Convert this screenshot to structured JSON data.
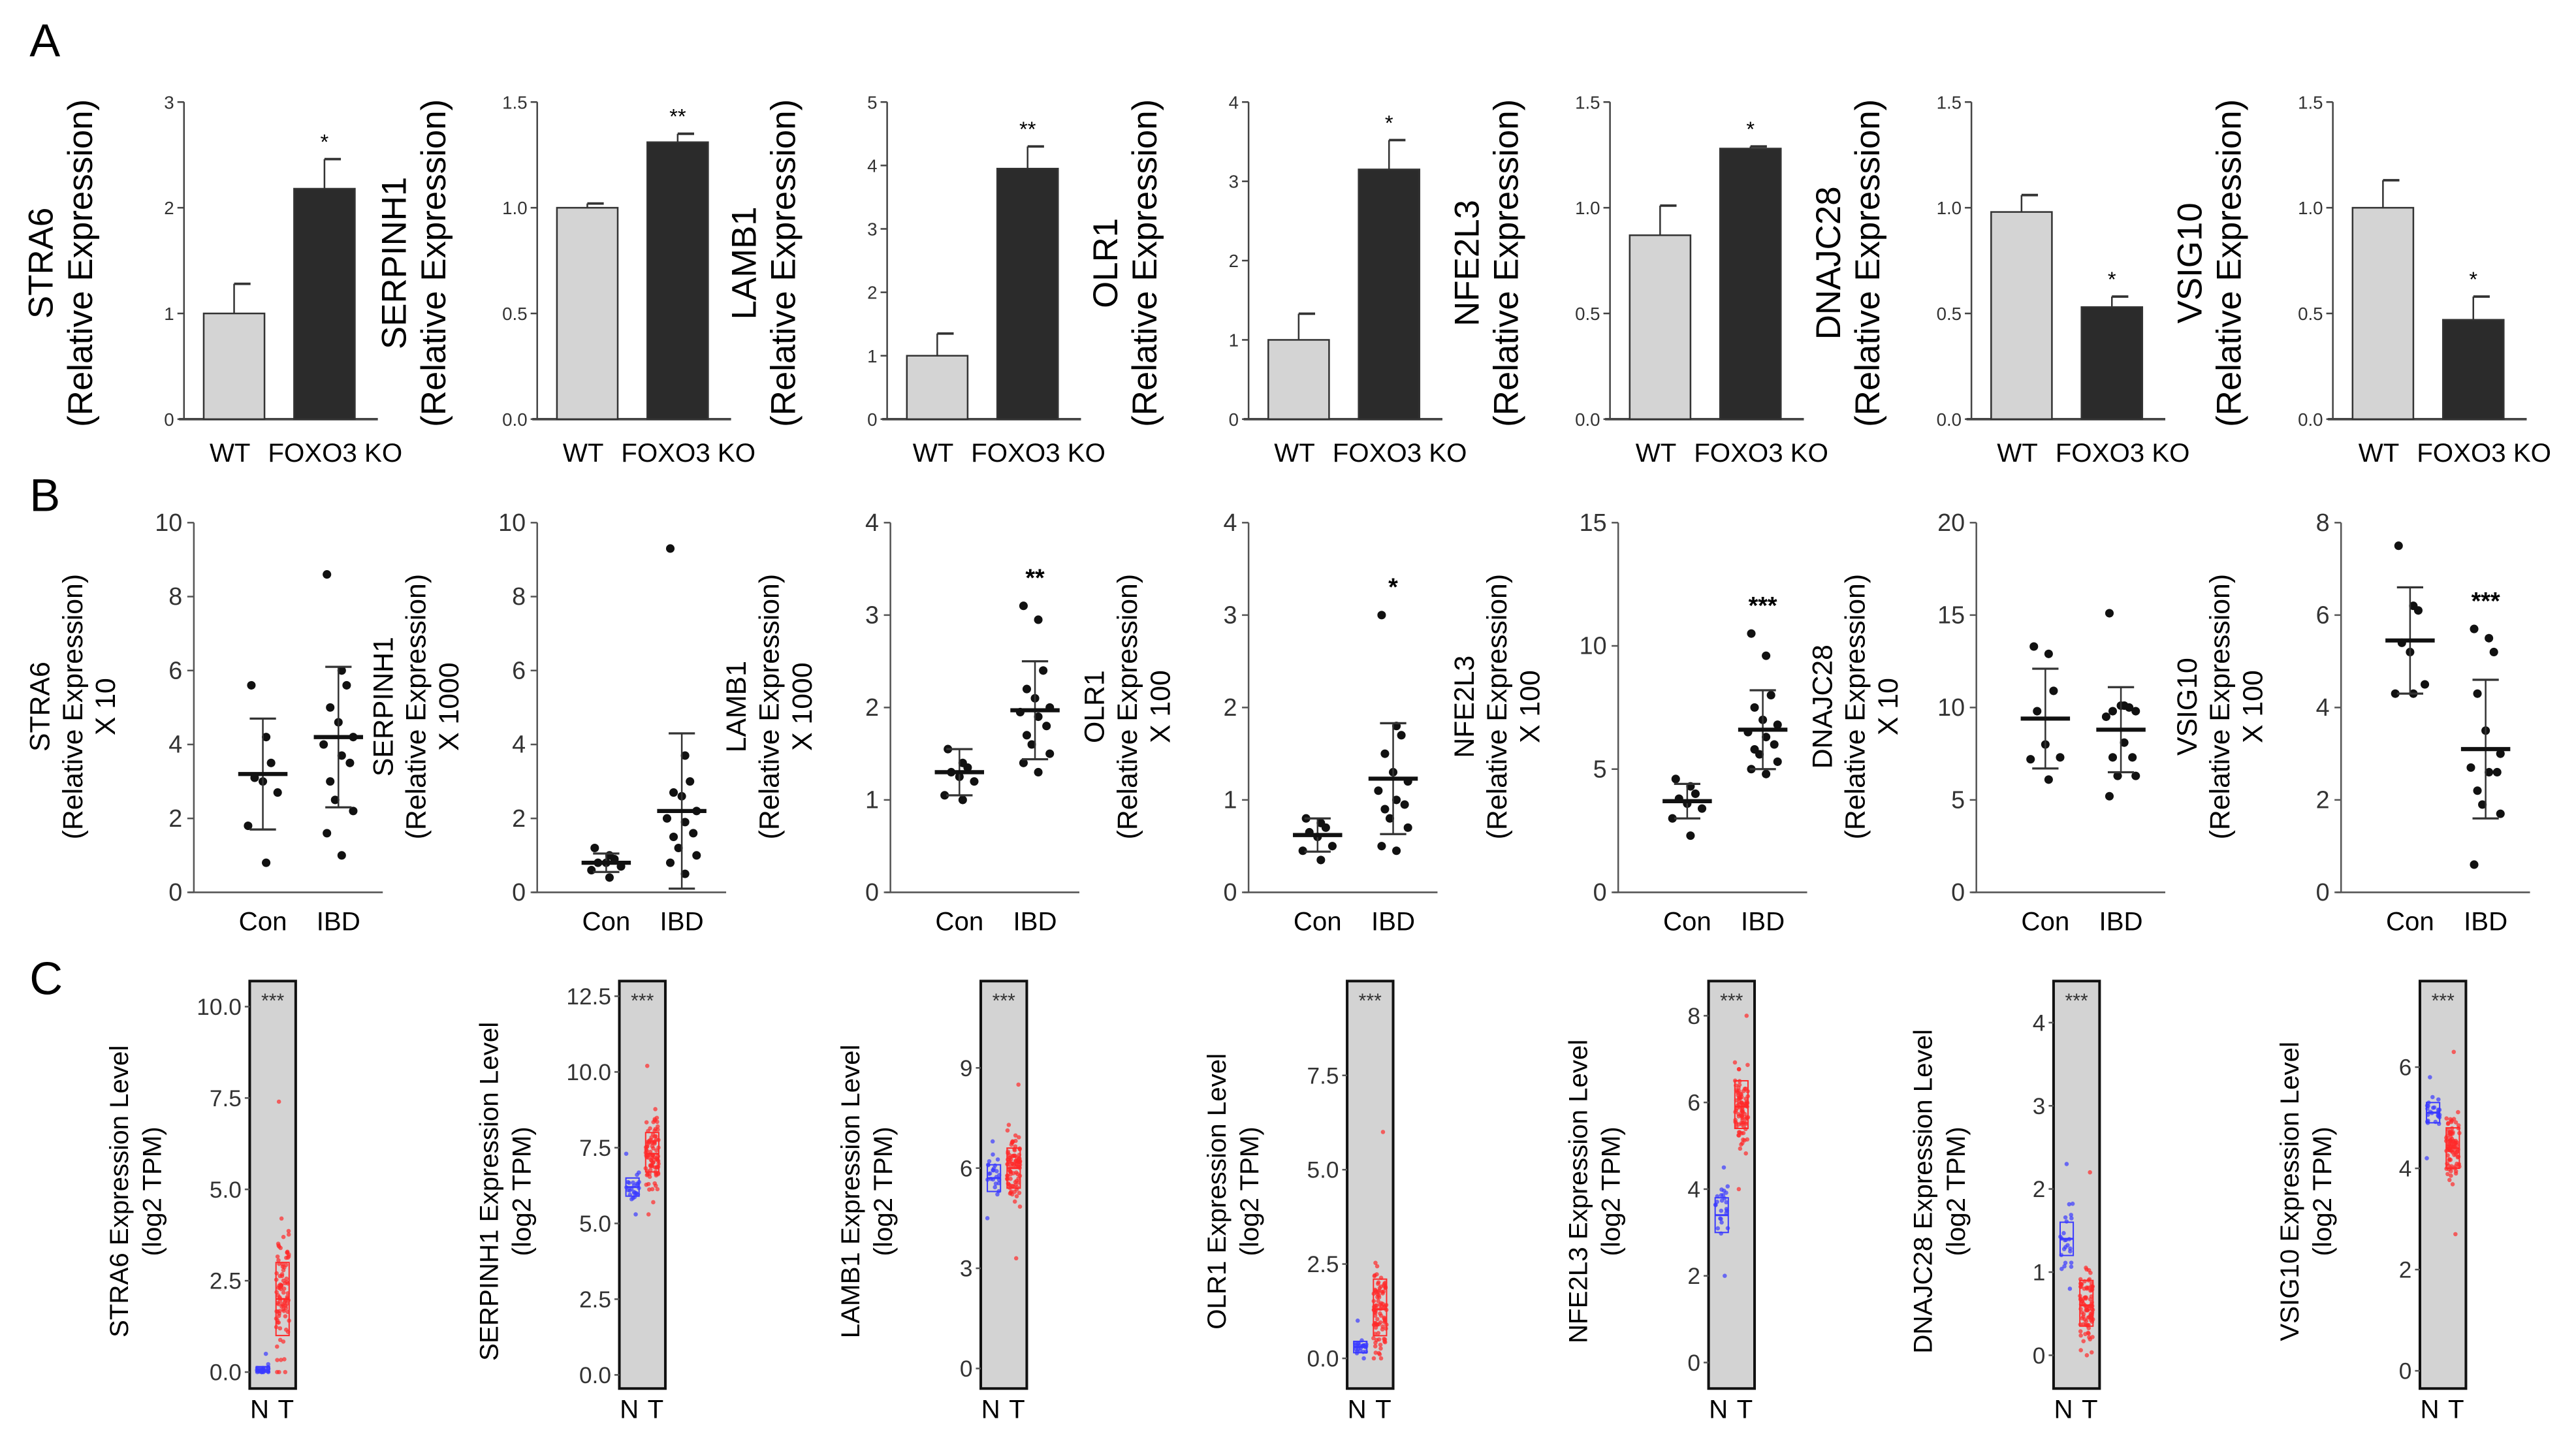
{
  "panel_labels": [
    "A",
    "B",
    "C"
  ],
  "colors": {
    "wt_bar": "#d4d4d4",
    "ko_bar": "#2b2b2b",
    "normal": "#3a3aff",
    "tumor": "#ff2a2a",
    "box_bg": "#d3d3d3"
  },
  "chart_data": [
    {
      "panel": "A",
      "type": "bar",
      "ylabel": [
        "STRA6",
        "(Relative Expression)"
      ],
      "categories": [
        "WT",
        "FOXO3 KO"
      ],
      "values": [
        1.0,
        2.18
      ],
      "errors": [
        0.28,
        0.28
      ],
      "significance": "*",
      "ylim": [
        0,
        3
      ],
      "yticks": [
        "0",
        "1",
        "2",
        "3"
      ]
    },
    {
      "panel": "A",
      "type": "bar",
      "ylabel": [
        "SERPINH1",
        "(Relative Expression)"
      ],
      "categories": [
        "WT",
        "FOXO3 KO"
      ],
      "values": [
        1.0,
        1.31
      ],
      "errors": [
        0.02,
        0.04
      ],
      "significance": "**",
      "ylim": [
        0,
        1.5
      ],
      "yticks": [
        "0.0",
        "0.5",
        "1.0",
        "1.5"
      ]
    },
    {
      "panel": "A",
      "type": "bar",
      "ylabel": [
        "LAMB1",
        "(Relative Expression)"
      ],
      "categories": [
        "WT",
        "FOXO3 KO"
      ],
      "values": [
        1.0,
        3.95
      ],
      "errors": [
        0.35,
        0.35
      ],
      "significance": "**",
      "ylim": [
        0,
        5
      ],
      "yticks": [
        "0",
        "1",
        "2",
        "3",
        "4",
        "5"
      ]
    },
    {
      "panel": "A",
      "type": "bar",
      "ylabel": [
        "OLR1",
        "(Relative Expression)"
      ],
      "categories": [
        "WT",
        "FOXO3 KO"
      ],
      "values": [
        1.0,
        3.15
      ],
      "errors": [
        0.33,
        0.37
      ],
      "significance": "*",
      "ylim": [
        0,
        4
      ],
      "yticks": [
        "0",
        "1",
        "2",
        "3",
        "4"
      ]
    },
    {
      "panel": "A",
      "type": "bar",
      "ylabel": [
        "NFE2L3",
        "(Relative Expression)"
      ],
      "categories": [
        "WT",
        "FOXO3 KO"
      ],
      "values": [
        0.87,
        1.28
      ],
      "errors": [
        0.14,
        0.01
      ],
      "significance": "*",
      "ylim": [
        0,
        1.5
      ],
      "yticks": [
        "0.0",
        "0.5",
        "1.0",
        "1.5"
      ]
    },
    {
      "panel": "A",
      "type": "bar",
      "ylabel": [
        "DNAJC28",
        "(Relative Expression)"
      ],
      "categories": [
        "WT",
        "FOXO3 KO"
      ],
      "values": [
        0.98,
        0.53
      ],
      "errors": [
        0.08,
        0.05
      ],
      "significance": "*",
      "ylim": [
        0,
        1.5
      ],
      "yticks": [
        "0.0",
        "0.5",
        "1.0",
        "1.5"
      ]
    },
    {
      "panel": "A",
      "type": "bar",
      "ylabel": [
        "VSIG10",
        "(Relative Expression)"
      ],
      "categories": [
        "WT",
        "FOXO3 KO"
      ],
      "values": [
        1.0,
        0.47
      ],
      "errors": [
        0.13,
        0.11
      ],
      "significance": "*",
      "ylim": [
        0,
        1.5
      ],
      "yticks": [
        "0.0",
        "0.5",
        "1.0",
        "1.5"
      ]
    },
    {
      "panel": "B",
      "type": "scatter",
      "ylabel": [
        "STRA6",
        "(Relative Expression)",
        "X 10"
      ],
      "categories": [
        "Con",
        "IBD"
      ],
      "points": [
        [
          5.6,
          4.2,
          3.5,
          3.1,
          3.0,
          2.7,
          1.8,
          0.8
        ],
        [
          8.6,
          6.0,
          5.6,
          5.0,
          4.6,
          4.2,
          4.0,
          3.7,
          3.5,
          3.0,
          2.5,
          2.2,
          1.6,
          1.0
        ]
      ],
      "mean": [
        3.2,
        4.2
      ],
      "sd": [
        1.5,
        1.9
      ],
      "significance": "",
      "ylim": [
        0,
        10
      ],
      "yticks": [
        "0",
        "2",
        "4",
        "6",
        "8",
        "10"
      ]
    },
    {
      "panel": "B",
      "type": "scatter",
      "ylabel": [
        "SERPINH1",
        "(Relative Expression)",
        "X 1000"
      ],
      "categories": [
        "Con",
        "IBD"
      ],
      "points": [
        [
          1.2,
          1.0,
          0.9,
          0.8,
          0.8,
          0.7,
          0.6,
          0.4
        ],
        [
          9.3,
          3.7,
          3.0,
          2.7,
          2.6,
          2.2,
          2.0,
          1.9,
          1.6,
          1.5,
          1.2,
          1.0,
          0.8,
          0.5
        ]
      ],
      "mean": [
        0.8,
        2.2
      ],
      "sd": [
        0.25,
        2.1
      ],
      "significance": "",
      "ylim": [
        0,
        10
      ],
      "yticks": [
        "0",
        "2",
        "4",
        "6",
        "8",
        "10"
      ]
    },
    {
      "panel": "B",
      "type": "scatter",
      "ylabel": [
        "LAMB1",
        "(Relative Expression)",
        "X 1000"
      ],
      "categories": [
        "Con",
        "IBD"
      ],
      "points": [
        [
          1.55,
          1.4,
          1.35,
          1.3,
          1.25,
          1.2,
          1.05,
          1.0
        ],
        [
          3.1,
          2.95,
          2.4,
          2.2,
          2.1,
          2.0,
          1.95,
          1.9,
          1.8,
          1.7,
          1.6,
          1.5,
          1.4,
          1.3
        ]
      ],
      "mean": [
        1.3,
        1.97
      ],
      "sd": [
        0.25,
        0.53
      ],
      "significance": "**",
      "ylim": [
        0,
        4
      ],
      "yticks": [
        "0",
        "1",
        "2",
        "3",
        "4"
      ]
    },
    {
      "panel": "B",
      "type": "scatter",
      "ylabel": [
        "OLR1",
        "(Relative Expression)",
        "X 100"
      ],
      "categories": [
        "Con",
        "IBD"
      ],
      "points": [
        [
          0.8,
          0.75,
          0.7,
          0.65,
          0.6,
          0.5,
          0.45,
          0.35
        ],
        [
          3.0,
          1.8,
          1.7,
          1.5,
          1.3,
          1.2,
          1.1,
          1.0,
          0.95,
          0.9,
          0.8,
          0.7,
          0.5,
          0.45
        ]
      ],
      "mean": [
        0.62,
        1.23
      ],
      "sd": [
        0.18,
        0.6
      ],
      "significance": "*",
      "ylim": [
        0,
        4
      ],
      "yticks": [
        "0",
        "1",
        "2",
        "3",
        "4"
      ]
    },
    {
      "panel": "B",
      "type": "scatter",
      "ylabel": [
        "NFE2L3",
        "(Relative Expression)",
        "X 100"
      ],
      "categories": [
        "Con",
        "IBD"
      ],
      "points": [
        [
          4.6,
          4.3,
          4.0,
          3.8,
          3.6,
          3.4,
          3.0,
          2.3
        ],
        [
          10.5,
          9.6,
          8.0,
          7.5,
          7.0,
          6.8,
          6.5,
          6.3,
          6.0,
          5.8,
          5.6,
          5.3,
          5.0,
          4.8
        ]
      ],
      "mean": [
        3.7,
        6.6
      ],
      "sd": [
        0.7,
        1.6
      ],
      "significance": "***",
      "ylim": [
        0,
        15
      ],
      "yticks": [
        "0",
        "5",
        "10",
        "15"
      ]
    },
    {
      "panel": "B",
      "type": "scatter",
      "ylabel": [
        "DNAJC28",
        "(Relative Expression)",
        "X 10"
      ],
      "categories": [
        "Con",
        "IBD"
      ],
      "points": [
        [
          13.3,
          12.9,
          10.9,
          9.8,
          8.0,
          7.3,
          7.2,
          6.1
        ],
        [
          15.1,
          10.1,
          10.0,
          9.8,
          10.1,
          9.8,
          9.5,
          8.1,
          7.3,
          7.3,
          6.3,
          6.3,
          5.2
        ]
      ],
      "mean": [
        9.4,
        8.8
      ],
      "sd": [
        2.7,
        2.3
      ],
      "significance": "",
      "ylim": [
        0,
        20
      ],
      "yticks": [
        "0",
        "5",
        "10",
        "15",
        "20"
      ]
    },
    {
      "panel": "B",
      "type": "scatter",
      "ylabel": [
        "VSIG10",
        "(Relative Expression)",
        "X 100"
      ],
      "categories": [
        "Con",
        "IBD"
      ],
      "points": [
        [
          7.5,
          6.2,
          6.1,
          5.4,
          5.2,
          4.5,
          4.3,
          4.3
        ],
        [
          5.7,
          5.5,
          5.2,
          4.3,
          3.5,
          3.0,
          2.7,
          2.6,
          2.6,
          2.2,
          1.9,
          1.7,
          0.6
        ]
      ],
      "mean": [
        5.45,
        3.1
      ],
      "sd": [
        1.15,
        1.5
      ],
      "significance": "***",
      "ylim": [
        0,
        8
      ],
      "yticks": [
        "0",
        "2",
        "4",
        "6",
        "8"
      ]
    },
    {
      "panel": "C",
      "type": "box",
      "ylabel": [
        "STRA6 Expression Level",
        "(log2 TPM)"
      ],
      "categories": [
        "N",
        "T"
      ],
      "groups": [
        {
          "median": 0.05,
          "q1": 0.0,
          "q3": 0.15,
          "min": 0.0,
          "max": 0.5,
          "n": 25
        },
        {
          "median": 2.0,
          "q1": 1.0,
          "q3": 3.0,
          "min": 0.0,
          "max": 7.4,
          "n": 90
        }
      ],
      "significance": "***",
      "ylim": [
        -0.45,
        10.7
      ],
      "yticks": [
        "0.0",
        "2.5",
        "5.0",
        "7.5",
        "10.0"
      ]
    },
    {
      "panel": "C",
      "type": "box",
      "ylabel": [
        "SERPINH1 Expression Level",
        "(log2 TPM)"
      ],
      "categories": [
        "N",
        "T"
      ],
      "groups": [
        {
          "median": 6.2,
          "q1": 5.9,
          "q3": 6.5,
          "min": 5.3,
          "max": 7.3,
          "n": 25
        },
        {
          "median": 7.3,
          "q1": 6.7,
          "q3": 8.0,
          "min": 5.3,
          "max": 10.2,
          "n": 90
        }
      ],
      "significance": "***",
      "ylim": [
        -0.45,
        13.0
      ],
      "yticks": [
        "0.0",
        "2.5",
        "5.0",
        "7.5",
        "10.0",
        "12.5"
      ]
    },
    {
      "panel": "C",
      "type": "box",
      "ylabel": [
        "LAMB1 Expression Level",
        "(log2 TPM)"
      ],
      "categories": [
        "N",
        "T"
      ],
      "groups": [
        {
          "median": 5.7,
          "q1": 5.3,
          "q3": 6.1,
          "min": 4.5,
          "max": 6.8,
          "n": 25
        },
        {
          "median": 6.0,
          "q1": 5.4,
          "q3": 6.6,
          "min": 3.3,
          "max": 8.5,
          "n": 90
        }
      ],
      "significance": "***",
      "ylim": [
        -0.6,
        11.6
      ],
      "yticks": [
        "0",
        "3",
        "6",
        "9"
      ]
    },
    {
      "panel": "C",
      "type": "box",
      "ylabel": [
        "OLR1 Expression Level",
        "(log2 TPM)"
      ],
      "categories": [
        "N",
        "T"
      ],
      "groups": [
        {
          "median": 0.3,
          "q1": 0.15,
          "q3": 0.45,
          "min": 0.0,
          "max": 1.0,
          "n": 25
        },
        {
          "median": 1.3,
          "q1": 0.6,
          "q3": 2.1,
          "min": 0.0,
          "max": 6.0,
          "n": 90
        }
      ],
      "significance": "***",
      "ylim": [
        -0.8,
        10.0
      ],
      "yticks": [
        "0.0",
        "2.5",
        "5.0",
        "7.5"
      ]
    },
    {
      "panel": "C",
      "type": "box",
      "ylabel": [
        "NFE2L3 Expression Level",
        "(log2 TPM)"
      ],
      "categories": [
        "N",
        "T"
      ],
      "groups": [
        {
          "median": 3.4,
          "q1": 3.0,
          "q3": 3.8,
          "min": 2.0,
          "max": 4.5,
          "n": 25
        },
        {
          "median": 5.9,
          "q1": 5.4,
          "q3": 6.5,
          "min": 4.0,
          "max": 8.0,
          "n": 90
        }
      ],
      "significance": "***",
      "ylim": [
        -0.6,
        8.8
      ],
      "yticks": [
        "0",
        "2",
        "4",
        "6",
        "8"
      ]
    },
    {
      "panel": "C",
      "type": "box",
      "ylabel": [
        "DNAJC28 Expression Level",
        "(log2 TPM)"
      ],
      "categories": [
        "N",
        "T"
      ],
      "groups": [
        {
          "median": 1.4,
          "q1": 1.2,
          "q3": 1.6,
          "min": 0.8,
          "max": 2.3,
          "n": 25
        },
        {
          "median": 0.6,
          "q1": 0.35,
          "q3": 0.9,
          "min": 0.0,
          "max": 2.2,
          "n": 90
        }
      ],
      "significance": "***",
      "ylim": [
        -0.4,
        4.5
      ],
      "yticks": [
        "0",
        "1",
        "2",
        "3",
        "4"
      ]
    },
    {
      "panel": "C",
      "type": "box",
      "ylabel": [
        "VSIG10 Expression Level",
        "(log2 TPM)"
      ],
      "categories": [
        "N",
        "T"
      ],
      "groups": [
        {
          "median": 5.1,
          "q1": 4.9,
          "q3": 5.3,
          "min": 4.2,
          "max": 5.8,
          "n": 25
        },
        {
          "median": 4.4,
          "q1": 4.0,
          "q3": 4.8,
          "min": 2.7,
          "max": 6.3,
          "n": 90
        }
      ],
      "significance": "***",
      "ylim": [
        -0.35,
        7.7
      ],
      "yticks": [
        "0",
        "2",
        "4",
        "6"
      ]
    }
  ]
}
